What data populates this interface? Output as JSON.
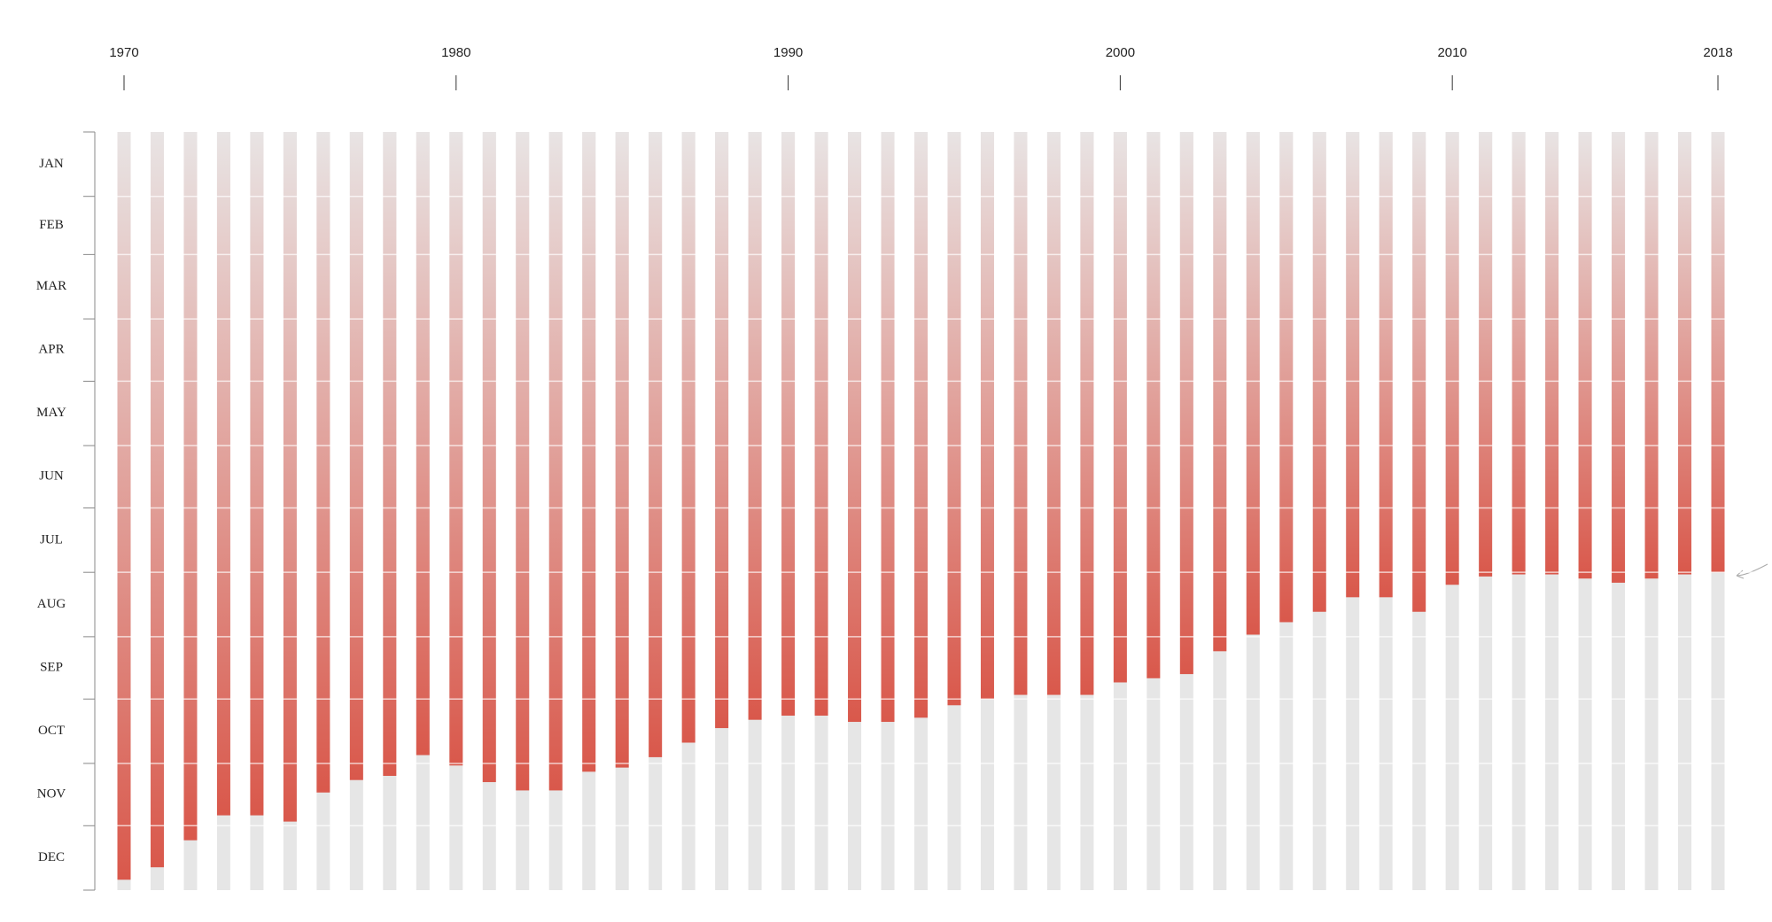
{
  "chart_data": {
    "type": "bar",
    "x": [
      1970,
      1971,
      1972,
      1973,
      1974,
      1975,
      1976,
      1977,
      1978,
      1979,
      1980,
      1981,
      1982,
      1983,
      1984,
      1985,
      1986,
      1987,
      1988,
      1989,
      1990,
      1991,
      1992,
      1993,
      1994,
      1995,
      1996,
      1997,
      1998,
      1999,
      2000,
      2001,
      2002,
      2003,
      2004,
      2005,
      2006,
      2007,
      2008,
      2009,
      2010,
      2011,
      2012,
      2013,
      2014,
      2015,
      2016,
      2017,
      2018
    ],
    "values": [
      360,
      354,
      341,
      329,
      329,
      332,
      318,
      312,
      310,
      300,
      305,
      313,
      317,
      317,
      308,
      306,
      301,
      294,
      287,
      283,
      281,
      281,
      284,
      284,
      282,
      276,
      273,
      271,
      271,
      271,
      265,
      263,
      261,
      250,
      242,
      236,
      231,
      224,
      224,
      231,
      218,
      214,
      213,
      213,
      215,
      217,
      215,
      213,
      212
    ],
    "xlim": [
      1970,
      2018
    ],
    "xticks": [
      1970,
      1980,
      1990,
      2000,
      2010,
      2018
    ],
    "ylim": [
      0,
      365
    ],
    "yticks": [
      0,
      31,
      59,
      90,
      120,
      151,
      181,
      212,
      243,
      273,
      304,
      334,
      365
    ],
    "y_categories": [
      "JAN",
      "FEB",
      "MAR",
      "APR",
      "MAY",
      "JUN",
      "JUL",
      "AUG",
      "SEP",
      "OCT",
      "NOV",
      "DEC"
    ],
    "color": "#d9584b",
    "background_color": "#e6e6e6",
    "grid": true
  }
}
